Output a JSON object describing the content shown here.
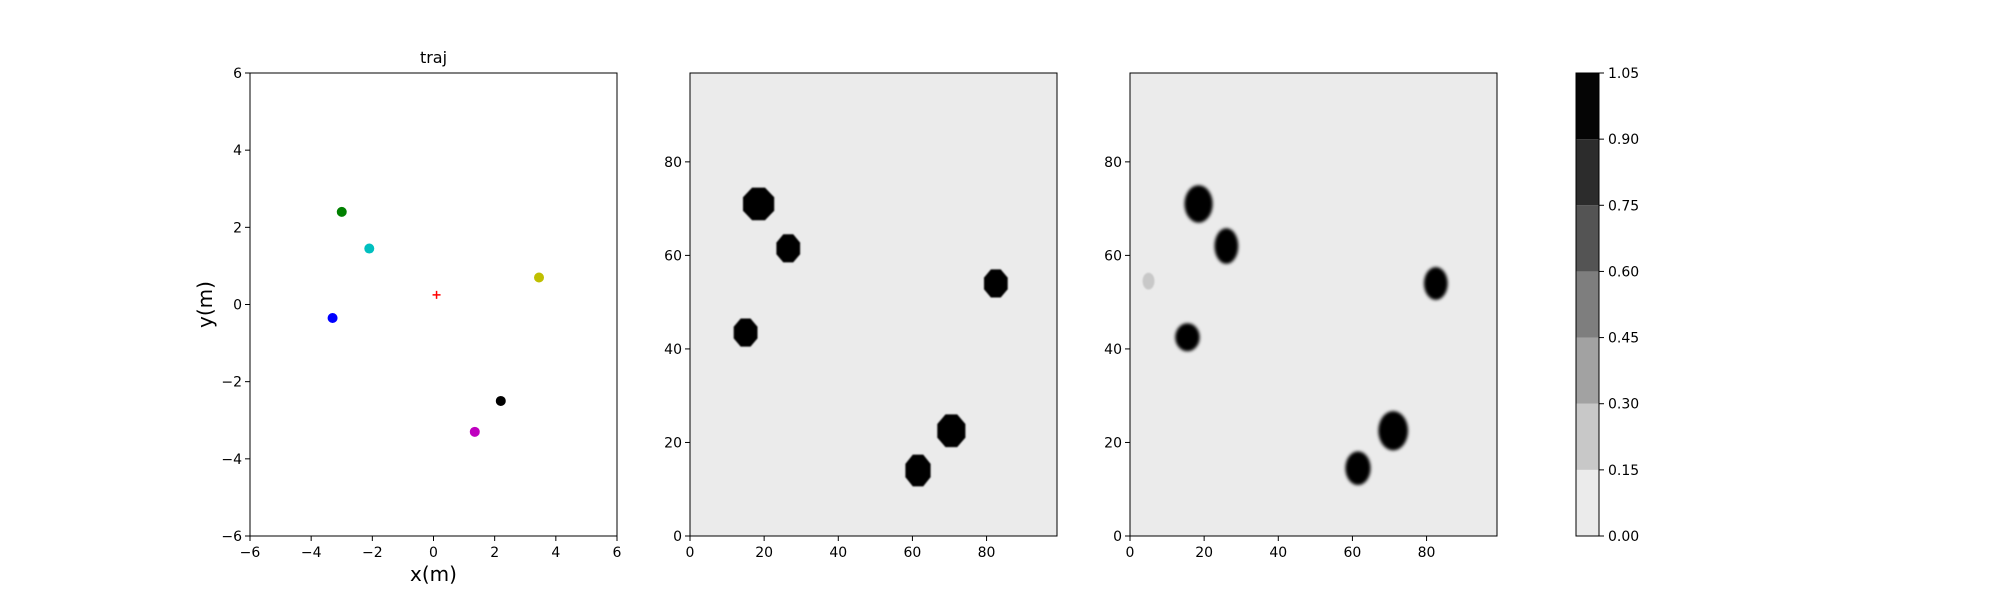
{
  "chart_data": [
    {
      "type": "scatter",
      "title": "traj",
      "xlabel": "x(m)",
      "ylabel": "y(m)",
      "xlim": [
        -6,
        6
      ],
      "ylim": [
        -6,
        6
      ],
      "xticks": [
        -6,
        -4,
        -2,
        0,
        2,
        4,
        6
      ],
      "yticks": [
        -6,
        -4,
        -2,
        0,
        2,
        4,
        6
      ],
      "xtick_labels": [
        "−6",
        "−4",
        "−2",
        "0",
        "2",
        "4",
        "6"
      ],
      "ytick_labels": [
        "−6",
        "−4",
        "−2",
        "0",
        "2",
        "4",
        "6"
      ],
      "points": [
        {
          "x": -3.0,
          "y": 2.4,
          "color": "#008000"
        },
        {
          "x": -2.1,
          "y": 1.45,
          "color": "#00bfbf"
        },
        {
          "x": -3.3,
          "y": -0.35,
          "color": "#0000ff"
        },
        {
          "x": 3.45,
          "y": 0.7,
          "color": "#bfbf00"
        },
        {
          "x": 2.2,
          "y": -2.5,
          "color": "#000000"
        },
        {
          "x": 1.35,
          "y": -3.3,
          "color": "#bf00bf"
        }
      ],
      "marker": {
        "x": 0.1,
        "y": 0.25,
        "symbol": "+",
        "color": "#ff0000"
      },
      "grid": false
    },
    {
      "type": "heatmap",
      "xlim": [
        0,
        99
      ],
      "ylim": [
        0,
        99
      ],
      "xticks": [
        0,
        20,
        40,
        60,
        80
      ],
      "yticks": [
        0,
        20,
        40,
        60,
        80
      ],
      "background_value": 0.0,
      "blobs": [
        {
          "x": 18.5,
          "y": 71,
          "rx": 4.2,
          "ry": 3.5,
          "shape": "octagon",
          "value": 1.0
        },
        {
          "x": 26.5,
          "y": 61.5,
          "rx": 3.2,
          "ry": 3.0,
          "shape": "octagon",
          "value": 1.0
        },
        {
          "x": 15,
          "y": 43.5,
          "rx": 3.2,
          "ry": 3.0,
          "shape": "octagon",
          "value": 1.0
        },
        {
          "x": 82.5,
          "y": 54,
          "rx": 3.2,
          "ry": 3.0,
          "shape": "octagon",
          "value": 1.0
        },
        {
          "x": 70.5,
          "y": 22.5,
          "rx": 3.8,
          "ry": 3.5,
          "shape": "octagon",
          "value": 1.0
        },
        {
          "x": 61.5,
          "y": 14,
          "rx": 3.4,
          "ry": 3.4,
          "shape": "octagon",
          "value": 1.0
        }
      ]
    },
    {
      "type": "heatmap",
      "xlim": [
        0,
        99
      ],
      "ylim": [
        0,
        99
      ],
      "xticks": [
        0,
        20,
        40,
        60,
        80
      ],
      "yticks": [
        0,
        20,
        40,
        60,
        80
      ],
      "background_value": 0.0,
      "blobs": [
        {
          "x": 18.5,
          "y": 71,
          "rx": 3.8,
          "ry": 4.0,
          "shape": "ellipse",
          "value": 1.0
        },
        {
          "x": 26,
          "y": 62,
          "rx": 3.2,
          "ry": 3.8,
          "shape": "ellipse",
          "value": 1.0
        },
        {
          "x": 15.5,
          "y": 42.5,
          "rx": 3.3,
          "ry": 3.0,
          "shape": "ellipse",
          "value": 1.0
        },
        {
          "x": 82.5,
          "y": 54,
          "rx": 3.2,
          "ry": 3.5,
          "shape": "ellipse",
          "value": 1.0
        },
        {
          "x": 71,
          "y": 22.5,
          "rx": 4.0,
          "ry": 4.2,
          "shape": "ellipse",
          "value": 1.0
        },
        {
          "x": 61.5,
          "y": 14.5,
          "rx": 3.4,
          "ry": 3.6,
          "shape": "ellipse",
          "value": 1.0
        },
        {
          "x": 5,
          "y": 54.5,
          "rx": 1.6,
          "ry": 1.8,
          "shape": "ellipse",
          "value": 0.25
        }
      ]
    },
    {
      "type": "colorbar",
      "ticks": [
        "0.00",
        "0.15",
        "0.30",
        "0.45",
        "0.60",
        "0.75",
        "0.90",
        "1.05"
      ],
      "levels": [
        0.0,
        0.15,
        0.3,
        0.45,
        0.6,
        0.75,
        0.9,
        1.05
      ],
      "colors": [
        "#ebebeb",
        "#c8c8c8",
        "#a2a2a2",
        "#7e7e7e",
        "#545454",
        "#2c2c2c",
        "#050505"
      ]
    }
  ]
}
